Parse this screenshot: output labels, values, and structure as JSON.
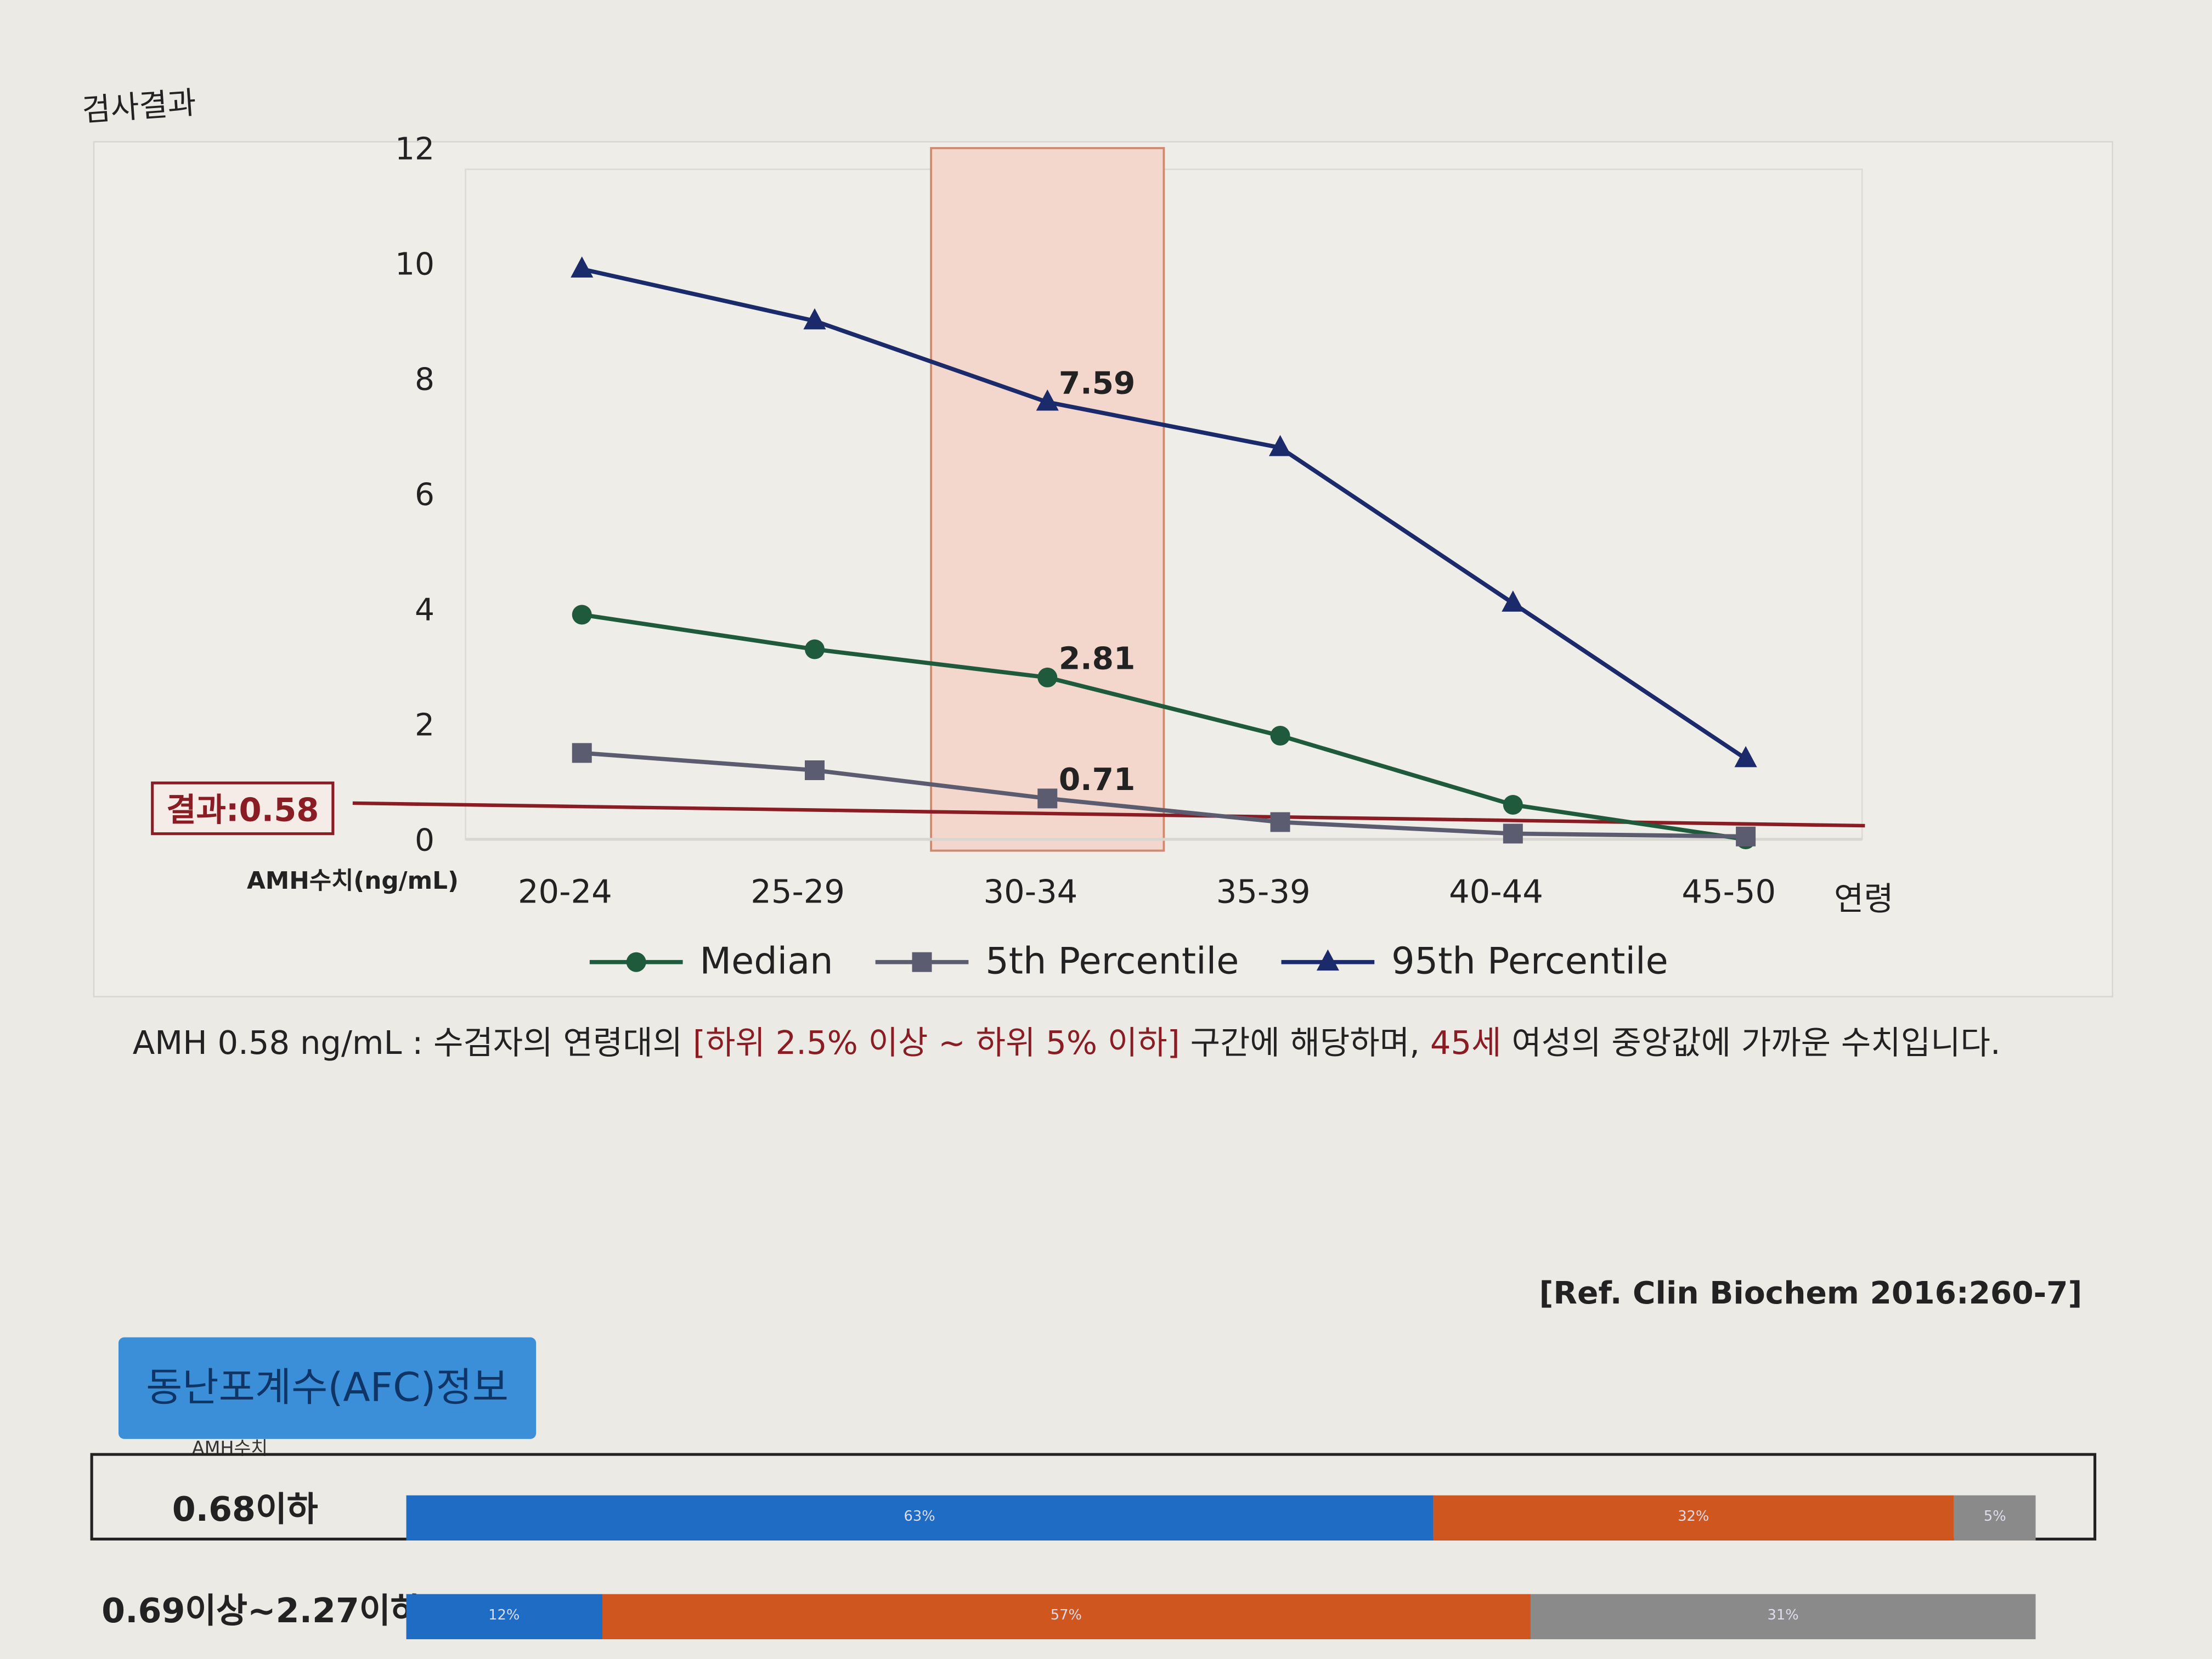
{
  "section_title": "검사결과",
  "chart_data": {
    "type": "line",
    "categories": [
      "20-24",
      "25-29",
      "30-34",
      "35-39",
      "40-44",
      "45-50"
    ],
    "x_unit_label": "연령",
    "ylabel": "AMH수치(ng/mL)",
    "ylim": [
      0,
      12
    ],
    "yticks": [
      0,
      2,
      4,
      6,
      8,
      10,
      12
    ],
    "highlight_category": "30-34",
    "result_line": {
      "label": "결과:0.58",
      "value": 0.58,
      "color": "#8a1c24"
    },
    "legend_position": "bottom",
    "series": [
      {
        "name": "Median",
        "marker": "circle",
        "color": "#1f5a3c",
        "values": [
          3.9,
          3.3,
          2.81,
          1.8,
          0.6,
          0.0
        ],
        "data_labels": {
          "2": "2.81"
        }
      },
      {
        "name": "5th Percentile",
        "marker": "square",
        "color": "#5c5c70",
        "values": [
          1.5,
          1.2,
          0.71,
          0.3,
          0.1,
          0.05
        ],
        "data_labels": {
          "2": "0.71"
        }
      },
      {
        "name": "95th Percentile",
        "marker": "triangle",
        "color": "#1b2a6b",
        "values": [
          9.9,
          9.0,
          7.59,
          6.8,
          4.1,
          1.4
        ],
        "data_labels": {
          "2": "7.59"
        }
      }
    ]
  },
  "description": {
    "p1": "AMH  0.58 ng/mL : 수검자의 연령대의 ",
    "p2": "[하위 2.5% 이상 ~ 하위 5% 이하]",
    "p3": " 구간에 해당하며, ",
    "p4": "45세",
    "p5": " 여성의 중앙값에 가까운 수치입니다."
  },
  "reference": "[Ref. Clin Biochem 2016:260-7]",
  "afc": {
    "title": "동난포계수(AFC)정보",
    "amh_label": "AMH수치",
    "rows": [
      {
        "label": "0.68이하",
        "segments": [
          {
            "pct": 63,
            "text": "63%",
            "color": "#1f6cc4"
          },
          {
            "pct": 32,
            "text": "32%",
            "color": "#d0561f"
          },
          {
            "pct": 5,
            "text": "5%",
            "color": "#8a8a8a"
          }
        ]
      },
      {
        "label": "0.69이상~2.27이하",
        "segments": [
          {
            "pct": 12,
            "text": "12%",
            "color": "#1f6cc4"
          },
          {
            "pct": 57,
            "text": "57%",
            "color": "#d0561f"
          },
          {
            "pct": 31,
            "text": "31%",
            "color": "#8a8a8a"
          }
        ]
      }
    ]
  }
}
